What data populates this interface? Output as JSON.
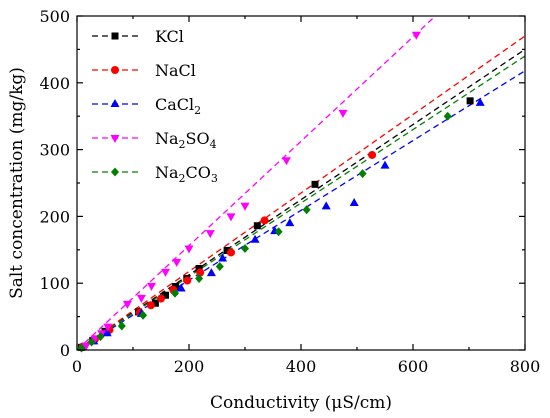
{
  "chart_data": {
    "type": "scatter",
    "xlabel": "Conductivity (μS/cm)",
    "ylabel": "Salt concentration (mg/kg)",
    "xlim": [
      0,
      800
    ],
    "ylim": [
      0,
      500
    ],
    "xticks": [
      "0",
      "200",
      "400",
      "600",
      "800"
    ],
    "yticks": [
      "0",
      "100",
      "200",
      "300",
      "400",
      "500"
    ],
    "grid": false,
    "legend_position": "top-left",
    "series": [
      {
        "name": "KCl",
        "marker": "square",
        "color": "#000000",
        "points": [
          [
            8,
            4
          ],
          [
            28,
            14
          ],
          [
            50,
            28
          ],
          [
            110,
            57
          ],
          [
            140,
            70
          ],
          [
            158,
            82
          ],
          [
            176,
            95
          ],
          [
            196,
            107
          ],
          [
            218,
            122
          ],
          [
            268,
            149
          ],
          [
            322,
            186
          ],
          [
            425,
            248
          ],
          [
            702,
            373
          ]
        ],
        "fit_x": [
          0,
          800
        ],
        "fit_y": [
          0,
          450
        ]
      },
      {
        "name": "NaCl",
        "marker": "circle",
        "color": "#ff0000",
        "points": [
          [
            10,
            5
          ],
          [
            32,
            16
          ],
          [
            58,
            30
          ],
          [
            112,
            56
          ],
          [
            132,
            67
          ],
          [
            150,
            77
          ],
          [
            172,
            90
          ],
          [
            197,
            104
          ],
          [
            220,
            116
          ],
          [
            275,
            146
          ],
          [
            335,
            194
          ],
          [
            527,
            292
          ]
        ],
        "fit_x": [
          0,
          800
        ],
        "fit_y": [
          0,
          470
        ]
      },
      {
        "name": "CaCl",
        "name_sub": "2",
        "marker": "triangle-up",
        "color": "#0000ff",
        "points": [
          [
            9,
            4
          ],
          [
            30,
            13
          ],
          [
            54,
            25
          ],
          [
            115,
            54
          ],
          [
            186,
            92
          ],
          [
            240,
            115
          ],
          [
            260,
            137
          ],
          [
            318,
            165
          ],
          [
            353,
            178
          ],
          [
            380,
            190
          ],
          [
            445,
            215
          ],
          [
            495,
            220
          ],
          [
            550,
            276
          ],
          [
            720,
            370
          ]
        ],
        "fit_x": [
          0,
          800
        ],
        "fit_y": [
          0,
          418
        ]
      },
      {
        "name": "Na",
        "name_sub": "2",
        "name_tail": "SO",
        "name_sub2": "4",
        "marker": "triangle-down",
        "color": "#ff00ff",
        "points": [
          [
            16,
            6
          ],
          [
            32,
            17
          ],
          [
            44,
            25
          ],
          [
            55,
            35
          ],
          [
            90,
            69
          ],
          [
            115,
            78
          ],
          [
            133,
            96
          ],
          [
            158,
            117
          ],
          [
            178,
            132
          ],
          [
            200,
            152
          ],
          [
            238,
            175
          ],
          [
            275,
            200
          ],
          [
            300,
            216
          ],
          [
            374,
            284
          ],
          [
            475,
            355
          ],
          [
            606,
            472
          ]
        ],
        "fit_x": [
          0,
          640
        ],
        "fit_y": [
          0,
          500
        ]
      },
      {
        "name": "Na",
        "name_sub": "2",
        "name_tail": "CO",
        "name_sub2": "3",
        "marker": "diamond",
        "color": "#008000",
        "points": [
          [
            8,
            3
          ],
          [
            26,
            12
          ],
          [
            42,
            20
          ],
          [
            80,
            36
          ],
          [
            118,
            52
          ],
          [
            175,
            85
          ],
          [
            218,
            107
          ],
          [
            255,
            125
          ],
          [
            300,
            152
          ],
          [
            360,
            177
          ],
          [
            410,
            210
          ],
          [
            510,
            264
          ],
          [
            662,
            350
          ]
        ],
        "fit_x": [
          0,
          800
        ],
        "fit_y": [
          0,
          440
        ]
      }
    ]
  }
}
